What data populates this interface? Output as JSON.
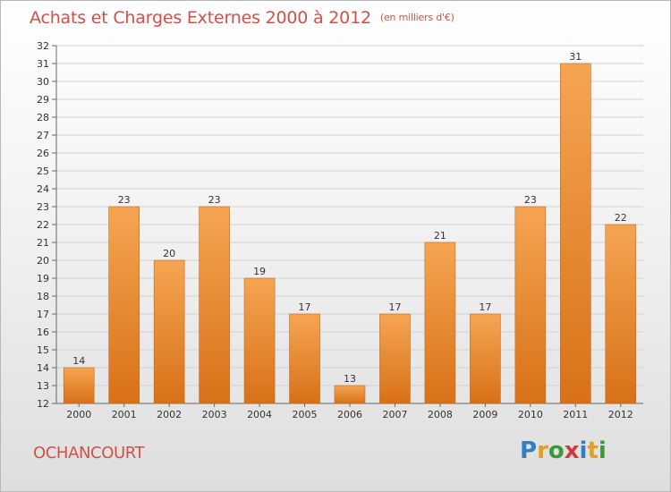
{
  "title": "Achats et Charges Externes 2000 à 2012",
  "subtitle": "(en milliers d'€)",
  "commune": "OCHANCOURT",
  "brand": {
    "letters": [
      "P",
      "r",
      "o",
      "x",
      "i",
      "t",
      "i"
    ],
    "colors": [
      "#2f7fc1",
      "#e0a020",
      "#3a9a3a",
      "#d03a3a",
      "#2f7fc1",
      "#e0a020",
      "#3a9a3a"
    ]
  },
  "colors": {
    "bar_top": "#f5a552",
    "bar_bottom": "#d87118",
    "bar_edge": "#c4681d",
    "title": "#d0504a"
  },
  "chart_data": {
    "type": "bar",
    "categories": [
      "2000",
      "2001",
      "2002",
      "2003",
      "2004",
      "2005",
      "2006",
      "2007",
      "2008",
      "2009",
      "2010",
      "2011",
      "2012"
    ],
    "values": [
      14,
      23,
      20,
      23,
      19,
      17,
      13,
      17,
      21,
      17,
      23,
      31,
      22
    ],
    "title": "Achats et Charges Externes 2000 à 2012",
    "xlabel": "",
    "ylabel": "",
    "ylim": [
      12,
      32
    ],
    "yticks": [
      12,
      13,
      14,
      15,
      16,
      17,
      18,
      19,
      20,
      21,
      22,
      23,
      24,
      25,
      26,
      27,
      28,
      29,
      30,
      31,
      32
    ],
    "grid": true,
    "legend": "none"
  }
}
